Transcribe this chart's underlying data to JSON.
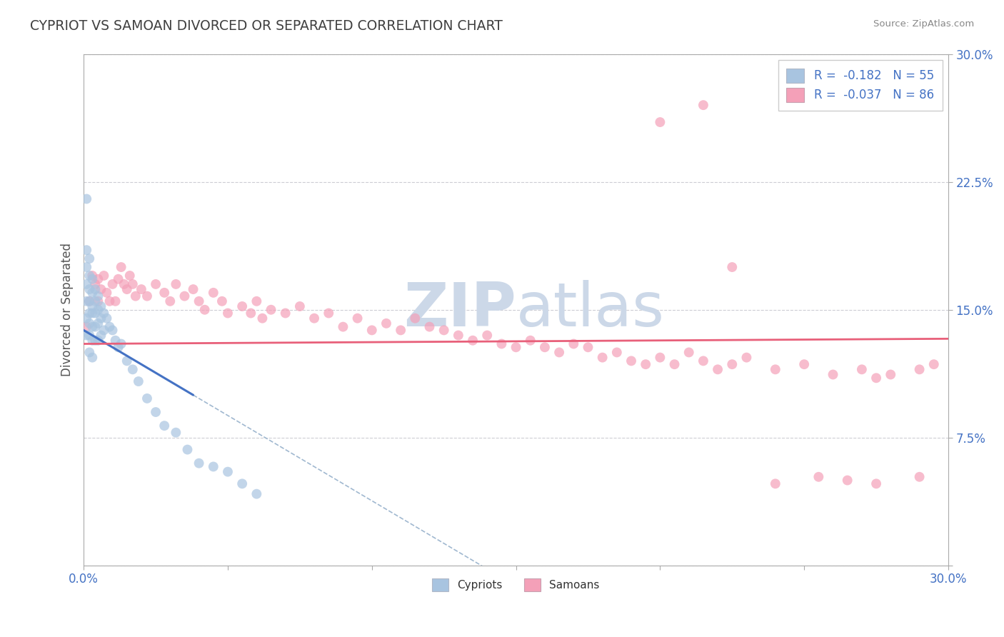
{
  "title": "CYPRIOT VS SAMOAN DIVORCED OR SEPARATED CORRELATION CHART",
  "source_text": "Source: ZipAtlas.com",
  "ylabel_left": "Divorced or Separated",
  "xmin": 0.0,
  "xmax": 0.3,
  "ymin": 0.0,
  "ymax": 0.3,
  "legend_entry1": "R =  -0.182   N = 55",
  "legend_entry2": "R =  -0.037   N = 86",
  "cypriot_color": "#a8c4e0",
  "samoan_color": "#f4a0b8",
  "cypriot_line_color": "#4472c4",
  "samoan_line_color": "#e8607a",
  "watermark_color": "#ccd8e8",
  "background_color": "#ffffff",
  "grid_color": "#c8c8d0",
  "title_color": "#404040",
  "cypriot_x": [
    0.001,
    0.001,
    0.001,
    0.001,
    0.001,
    0.001,
    0.001,
    0.002,
    0.002,
    0.002,
    0.002,
    0.002,
    0.002,
    0.002,
    0.002,
    0.003,
    0.003,
    0.003,
    0.003,
    0.003,
    0.003,
    0.003,
    0.004,
    0.004,
    0.004,
    0.004,
    0.004,
    0.005,
    0.005,
    0.005,
    0.005,
    0.006,
    0.006,
    0.006,
    0.007,
    0.007,
    0.008,
    0.009,
    0.01,
    0.011,
    0.012,
    0.013,
    0.015,
    0.017,
    0.019,
    0.022,
    0.025,
    0.028,
    0.032,
    0.036,
    0.04,
    0.045,
    0.05,
    0.055,
    0.06
  ],
  "cypriot_y": [
    0.215,
    0.185,
    0.175,
    0.165,
    0.155,
    0.145,
    0.135,
    0.18,
    0.17,
    0.162,
    0.155,
    0.148,
    0.142,
    0.135,
    0.125,
    0.168,
    0.16,
    0.152,
    0.148,
    0.14,
    0.132,
    0.122,
    0.162,
    0.155,
    0.148,
    0.14,
    0.132,
    0.158,
    0.15,
    0.142,
    0.132,
    0.152,
    0.145,
    0.135,
    0.148,
    0.138,
    0.145,
    0.14,
    0.138,
    0.132,
    0.128,
    0.13,
    0.12,
    0.115,
    0.108,
    0.098,
    0.09,
    0.082,
    0.078,
    0.068,
    0.06,
    0.058,
    0.055,
    0.048,
    0.042
  ],
  "samoan_x": [
    0.001,
    0.002,
    0.003,
    0.004,
    0.005,
    0.005,
    0.006,
    0.007,
    0.008,
    0.009,
    0.01,
    0.011,
    0.012,
    0.013,
    0.014,
    0.015,
    0.016,
    0.017,
    0.018,
    0.02,
    0.022,
    0.025,
    0.028,
    0.03,
    0.032,
    0.035,
    0.038,
    0.04,
    0.042,
    0.045,
    0.048,
    0.05,
    0.055,
    0.058,
    0.06,
    0.062,
    0.065,
    0.07,
    0.075,
    0.08,
    0.085,
    0.09,
    0.095,
    0.1,
    0.105,
    0.11,
    0.115,
    0.12,
    0.125,
    0.13,
    0.135,
    0.14,
    0.145,
    0.15,
    0.155,
    0.16,
    0.165,
    0.17,
    0.175,
    0.18,
    0.185,
    0.19,
    0.195,
    0.2,
    0.205,
    0.21,
    0.215,
    0.22,
    0.225,
    0.23,
    0.24,
    0.25,
    0.26,
    0.27,
    0.275,
    0.28,
    0.29,
    0.295,
    0.2,
    0.215,
    0.225,
    0.24,
    0.255,
    0.265,
    0.275,
    0.29
  ],
  "samoan_y": [
    0.14,
    0.155,
    0.17,
    0.165,
    0.168,
    0.155,
    0.162,
    0.17,
    0.16,
    0.155,
    0.165,
    0.155,
    0.168,
    0.175,
    0.165,
    0.162,
    0.17,
    0.165,
    0.158,
    0.162,
    0.158,
    0.165,
    0.16,
    0.155,
    0.165,
    0.158,
    0.162,
    0.155,
    0.15,
    0.16,
    0.155,
    0.148,
    0.152,
    0.148,
    0.155,
    0.145,
    0.15,
    0.148,
    0.152,
    0.145,
    0.148,
    0.14,
    0.145,
    0.138,
    0.142,
    0.138,
    0.145,
    0.14,
    0.138,
    0.135,
    0.132,
    0.135,
    0.13,
    0.128,
    0.132,
    0.128,
    0.125,
    0.13,
    0.128,
    0.122,
    0.125,
    0.12,
    0.118,
    0.122,
    0.118,
    0.125,
    0.12,
    0.115,
    0.118,
    0.122,
    0.115,
    0.118,
    0.112,
    0.115,
    0.11,
    0.112,
    0.115,
    0.118,
    0.26,
    0.27,
    0.175,
    0.048,
    0.052,
    0.05,
    0.048,
    0.052
  ]
}
